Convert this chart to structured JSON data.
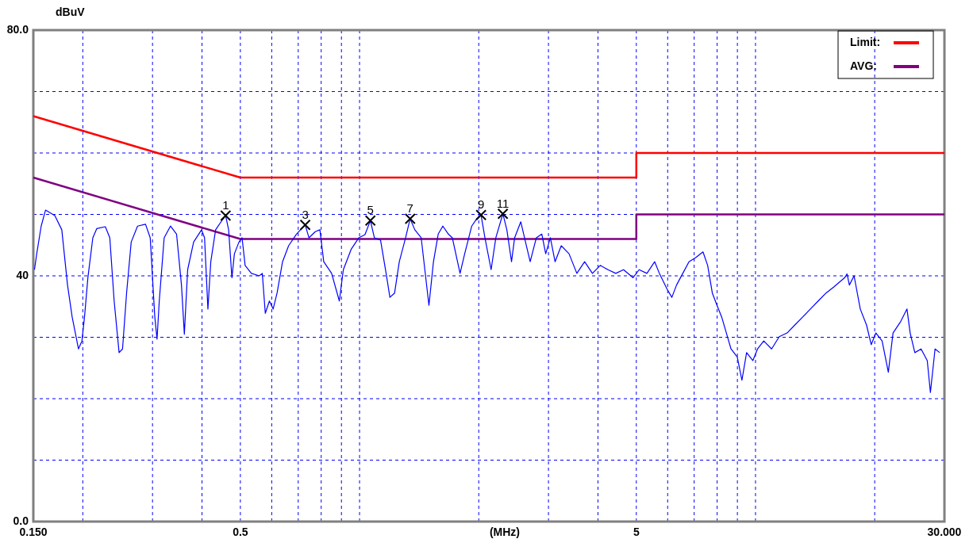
{
  "chart_data": {
    "type": "line",
    "xlabel": "(MHz)",
    "ylabel": "dBuV",
    "log": "x",
    "xlim": [
      0.15,
      30
    ],
    "ylim": [
      0,
      80
    ],
    "xticks": [
      {
        "value": 0.15,
        "label": "0.150"
      },
      {
        "value": 0.2,
        "label": null
      },
      {
        "value": 0.3,
        "label": null
      },
      {
        "value": 0.4,
        "label": null
      },
      0.5,
      {
        "value": 0.6,
        "label": null
      },
      {
        "value": 0.7,
        "label": null
      },
      {
        "value": 0.8,
        "label": null
      },
      {
        "value": 0.9,
        "label": null
      },
      {
        "value": 1,
        "label": null
      },
      {
        "value": 2,
        "label": null
      },
      {
        "value": 3,
        "label": null
      },
      {
        "value": 4,
        "label": null
      },
      5,
      {
        "value": 6,
        "label": null
      },
      {
        "value": 7,
        "label": null
      },
      {
        "value": 8,
        "label": null
      },
      {
        "value": 9,
        "label": null
      },
      {
        "value": 10,
        "label": null
      },
      {
        "value": 20,
        "label": null
      },
      {
        "value": 30,
        "label": "30.000"
      }
    ],
    "yticks": [
      {
        "value": 0,
        "label": "0.0"
      },
      {
        "value": 10,
        "label": null
      },
      {
        "value": 20,
        "label": null
      },
      {
        "value": 30,
        "label": null
      },
      40,
      {
        "value": 50,
        "label": null
      },
      {
        "value": 60,
        "label": null
      },
      {
        "value": 70,
        "label": null
      },
      {
        "value": 80,
        "label": "80.0"
      }
    ],
    "grid": true,
    "legend": "top right",
    "annotations": [
      {
        "text": "1",
        "x": 0.459,
        "y": 49.8
      },
      {
        "text": "3",
        "x": 0.729,
        "y": 48.3
      },
      {
        "text": "5",
        "x": 1.065,
        "y": 49.0
      },
      {
        "text": "7",
        "x": 1.342,
        "y": 49.3
      },
      {
        "text": "9",
        "x": 2.027,
        "y": 49.9
      },
      {
        "text": "11",
        "x": 2.301,
        "y": 50.1
      }
    ],
    "series": [
      {
        "name": "Limit:",
        "color": "#ff0000",
        "x": [
          0.15,
          0.5,
          5,
          5,
          30
        ],
        "values": [
          66,
          56,
          56,
          60,
          60
        ]
      },
      {
        "name": "AVG:",
        "color": "#800080",
        "x": [
          0.15,
          0.5,
          5,
          5,
          30
        ],
        "values": [
          56,
          46,
          46,
          50,
          50
        ]
      },
      {
        "color": "#0000ff",
        "x": [
          0.151,
          0.153,
          0.157,
          0.161,
          0.17,
          0.177,
          0.183,
          0.188,
          0.195,
          0.199,
          0.202,
          0.206,
          0.212,
          0.217,
          0.228,
          0.234,
          0.24,
          0.247,
          0.252,
          0.258,
          0.265,
          0.275,
          0.288,
          0.296,
          0.304,
          0.308,
          0.312,
          0.321,
          0.333,
          0.345,
          0.355,
          0.361,
          0.368,
          0.381,
          0.399,
          0.406,
          0.414,
          0.421,
          0.433,
          0.449,
          0.459,
          0.467,
          0.476,
          0.483,
          0.496,
          0.505,
          0.514,
          0.533,
          0.558,
          0.568,
          0.578,
          0.592,
          0.605,
          0.619,
          0.639,
          0.662,
          0.693,
          0.729,
          0.745,
          0.773,
          0.794,
          0.812,
          0.85,
          0.889,
          0.91,
          0.952,
          0.996,
          1.032,
          1.065,
          1.09,
          1.13,
          1.167,
          1.193,
          1.226,
          1.26,
          1.307,
          1.342,
          1.379,
          1.431,
          1.497,
          1.537,
          1.58,
          1.623,
          1.676,
          1.715,
          1.794,
          1.843,
          1.92,
          1.982,
          2.027,
          2.073,
          2.149,
          2.209,
          2.301,
          2.355,
          2.42,
          2.464,
          2.554,
          2.625,
          2.697,
          2.796,
          2.886,
          2.952,
          3.033,
          3.117,
          3.231,
          3.381,
          3.538,
          3.702,
          3.873,
          4.053,
          4.24,
          4.437,
          4.642,
          4.904,
          5.082,
          5.318,
          5.564,
          5.718,
          5.983,
          6.148,
          6.318,
          6.551,
          6.792,
          7.074,
          7.368,
          7.571,
          7.779,
          7.994,
          8.214,
          8.441,
          8.672,
          8.993,
          9.24,
          9.495,
          9.845,
          10.12,
          10.49,
          10.98,
          11.48,
          12.02,
          12.57,
          13.16,
          13.76,
          14.4,
          15.07,
          15.77,
          16.8,
          17.03,
          17.26,
          17.74,
          18.39,
          19.07,
          19.6,
          20.14,
          20.88,
          21.65,
          22.25,
          23.28,
          24.13,
          24.58,
          25.26,
          26.19,
          27.15,
          27.65,
          28.41,
          29.19
        ],
        "values": [
          41.0,
          43.6,
          48.1,
          50.7,
          49.8,
          47.5,
          38.5,
          33.3,
          28.1,
          29.4,
          33.3,
          39.7,
          46.2,
          47.7,
          48.0,
          46.2,
          35.9,
          27.5,
          28.1,
          37.2,
          45.5,
          48.1,
          48.4,
          46.2,
          33.3,
          29.7,
          35.9,
          46.2,
          48.1,
          46.8,
          38.5,
          30.5,
          41.0,
          45.5,
          47.5,
          46.2,
          34.6,
          42.3,
          47.5,
          49.0,
          49.8,
          47.5,
          39.7,
          43.6,
          45.5,
          46.2,
          41.7,
          40.4,
          40.0,
          40.4,
          33.9,
          35.9,
          34.6,
          37.2,
          42.3,
          44.9,
          46.8,
          48.3,
          46.2,
          47.2,
          47.5,
          42.3,
          40.4,
          35.9,
          41.0,
          44.3,
          46.2,
          46.7,
          49.0,
          46.2,
          45.8,
          40.4,
          36.5,
          37.2,
          42.3,
          46.2,
          49.3,
          47.5,
          46.2,
          35.2,
          42.3,
          46.8,
          48.1,
          46.8,
          46.2,
          40.4,
          43.6,
          48.1,
          49.4,
          49.9,
          46.2,
          41.0,
          46.2,
          50.1,
          47.5,
          42.3,
          46.2,
          48.8,
          45.5,
          42.3,
          46.2,
          46.8,
          43.6,
          46.2,
          42.3,
          44.9,
          43.6,
          40.4,
          42.3,
          40.4,
          41.7,
          41.0,
          40.4,
          41.0,
          39.7,
          41.0,
          40.4,
          42.3,
          40.4,
          37.8,
          36.5,
          38.5,
          40.4,
          42.3,
          43.0,
          43.9,
          41.7,
          37.2,
          35.2,
          33.3,
          30.7,
          28.1,
          26.8,
          23.0,
          27.5,
          26.2,
          28.1,
          29.4,
          28.1,
          30.1,
          30.7,
          32.0,
          33.3,
          34.6,
          35.9,
          37.2,
          38.2,
          39.7,
          40.3,
          38.5,
          40.0,
          34.6,
          32.0,
          28.8,
          30.7,
          29.4,
          24.3,
          30.7,
          32.6,
          34.6,
          30.7,
          27.5,
          28.1,
          26.2,
          21.0,
          28.1,
          27.5
        ]
      },
      {
        "type": "scatter",
        "color": "#000000",
        "marker": "cross",
        "x": [
          0.459,
          0.729,
          1.065,
          1.342,
          2.027,
          2.301
        ],
        "values": [
          49.8,
          48.3,
          49.0,
          49.3,
          49.9,
          50.1
        ]
      }
    ]
  }
}
